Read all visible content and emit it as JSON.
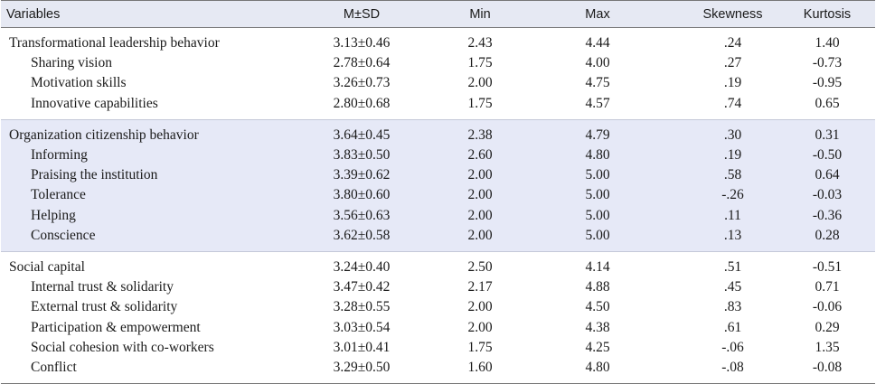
{
  "table": {
    "headers": [
      "Variables",
      "M±SD",
      "Min",
      "Max",
      "Skewness",
      "Kurtosis"
    ],
    "groups": [
      {
        "rows": [
          {
            "label": "Transformational leadership behavior",
            "level": "main",
            "msd": "3.13±0.46",
            "min": "2.43",
            "max": "4.44",
            "skew": ".24",
            "kurt": "1.40"
          },
          {
            "label": "Sharing vision",
            "level": "sub",
            "msd": "2.78±0.64",
            "min": "1.75",
            "max": "4.00",
            "skew": ".27",
            "kurt": "-0.73"
          },
          {
            "label": "Motivation skills",
            "level": "sub",
            "msd": "3.26±0.73",
            "min": "2.00",
            "max": "4.75",
            "skew": ".19",
            "kurt": "-0.95"
          },
          {
            "label": "Innovative capabilities",
            "level": "sub",
            "msd": "2.80±0.68",
            "min": "1.75",
            "max": "4.57",
            "skew": ".74",
            "kurt": "0.65"
          }
        ]
      },
      {
        "rows": [
          {
            "label": "Organization citizenship behavior",
            "level": "main",
            "msd": "3.64±0.45",
            "min": "2.38",
            "max": "4.79",
            "skew": ".30",
            "kurt": "0.31"
          },
          {
            "label": "Informing",
            "level": "sub",
            "msd": "3.83±0.50",
            "min": "2.60",
            "max": "4.80",
            "skew": ".19",
            "kurt": "-0.50"
          },
          {
            "label": "Praising the institution",
            "level": "sub",
            "msd": "3.39±0.62",
            "min": "2.00",
            "max": "5.00",
            "skew": ".58",
            "kurt": "0.64"
          },
          {
            "label": "Tolerance",
            "level": "sub",
            "msd": "3.80±0.60",
            "min": "2.00",
            "max": "5.00",
            "skew": "-.26",
            "kurt": "-0.03"
          },
          {
            "label": "Helping",
            "level": "sub",
            "msd": "3.56±0.63",
            "min": "2.00",
            "max": "5.00",
            "skew": ".11",
            "kurt": "-0.36"
          },
          {
            "label": "Conscience",
            "level": "sub",
            "msd": "3.62±0.58",
            "min": "2.00",
            "max": "5.00",
            "skew": ".13",
            "kurt": "0.28"
          }
        ]
      },
      {
        "rows": [
          {
            "label": "Social capital",
            "level": "main",
            "msd": "3.24±0.40",
            "min": "2.50",
            "max": "4.14",
            "skew": ".51",
            "kurt": "-0.51"
          },
          {
            "label": "Internal trust & solidarity",
            "level": "sub",
            "msd": "3.47±0.42",
            "min": "2.17",
            "max": "4.88",
            "skew": ".45",
            "kurt": "0.71"
          },
          {
            "label": "External trust & solidarity",
            "level": "sub",
            "msd": "3.28±0.55",
            "min": "2.00",
            "max": "4.50",
            "skew": ".83",
            "kurt": "-0.06"
          },
          {
            "label": "Participation & empowerment",
            "level": "sub",
            "msd": "3.03±0.54",
            "min": "2.00",
            "max": "4.38",
            "skew": ".61",
            "kurt": "0.29"
          },
          {
            "label": "Social cohesion with co-workers",
            "level": "sub",
            "msd": "3.01±0.41",
            "min": "1.75",
            "max": "4.25",
            "skew": "-.06",
            "kurt": "1.35"
          },
          {
            "label": "Conflict",
            "level": "sub",
            "msd": "3.29±0.50",
            "min": "1.60",
            "max": "4.80",
            "skew": "-.08",
            "kurt": "-0.08"
          }
        ]
      }
    ]
  }
}
